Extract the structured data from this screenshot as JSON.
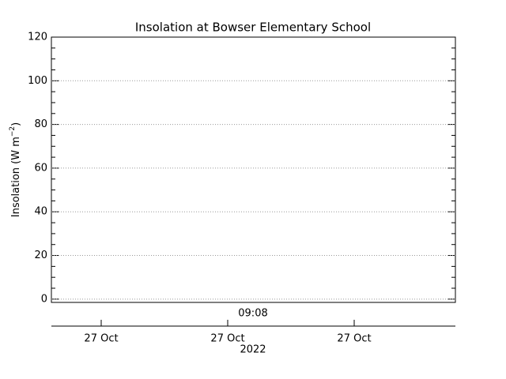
{
  "chart_data": {
    "type": "line",
    "title": "Insolation at Bowser Elementary School",
    "ylabel_parts": [
      "Insolation (W m",
      "−2",
      ")"
    ],
    "ylim": [
      -1.5,
      120
    ],
    "yticks": [
      0,
      20,
      40,
      60,
      80,
      100,
      120
    ],
    "grid": true,
    "x_time_label": "09:08",
    "x_categories": [
      "27 Oct",
      "27 Oct",
      "27 Oct"
    ],
    "x_year": "2022",
    "series": []
  }
}
